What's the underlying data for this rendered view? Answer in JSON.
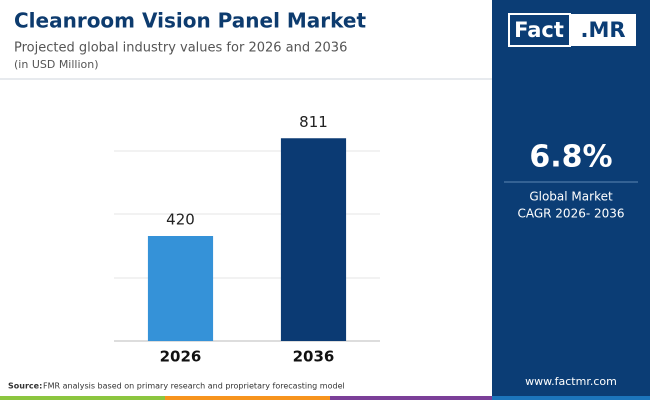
{
  "chart_data": {
    "type": "bar",
    "title": "Cleanroom Vision Panel Market",
    "subtitle": "Projected global industry values for 2026 and 2036",
    "unit_note": "(in USD Million)",
    "categories": [
      "2026",
      "2036"
    ],
    "values": [
      420,
      811
    ],
    "colors": [
      "#3592d8",
      "#0b3a73"
    ],
    "ylim": [
      0,
      1000
    ]
  },
  "brand": {
    "logo_left": "Fact",
    "logo_right": ".MR",
    "url": "www.factmr.com"
  },
  "panel": {
    "cagr": "6.8%",
    "line1": "Global Market",
    "line2": "CAGR 2026- 2036"
  },
  "source": {
    "label": "Source:",
    "text": "FMR analysis based on primary research and proprietary forecasting model"
  }
}
